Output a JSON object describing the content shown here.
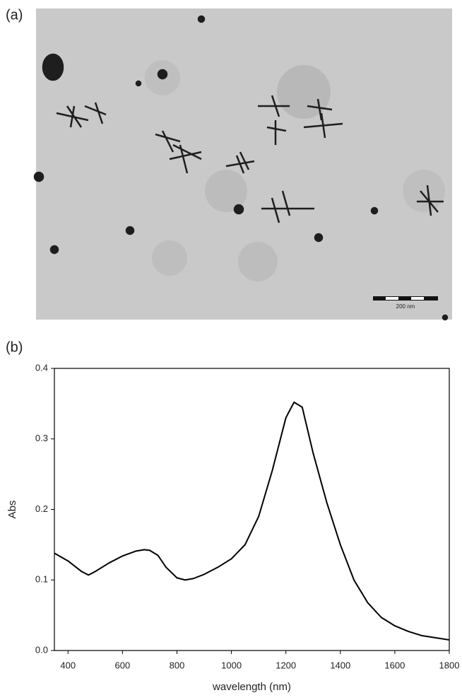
{
  "image_panel": {
    "label": "(a)",
    "scale_bar": "200 nm"
  },
  "chart_panel_label": "(b)",
  "chart_data": {
    "type": "line",
    "xlabel": "wavelength (nm)",
    "ylabel": "Abs",
    "x": [
      350,
      400,
      450,
      475,
      500,
      550,
      600,
      650,
      680,
      700,
      730,
      760,
      800,
      830,
      860,
      900,
      950,
      1000,
      1050,
      1100,
      1150,
      1200,
      1230,
      1260,
      1300,
      1350,
      1400,
      1450,
      1500,
      1550,
      1600,
      1650,
      1700,
      1750,
      1800
    ],
    "values": [
      0.138,
      0.127,
      0.112,
      0.107,
      0.112,
      0.124,
      0.134,
      0.141,
      0.143,
      0.142,
      0.135,
      0.118,
      0.103,
      0.1,
      0.102,
      0.108,
      0.118,
      0.13,
      0.15,
      0.19,
      0.255,
      0.33,
      0.352,
      0.345,
      0.28,
      0.21,
      0.15,
      0.1,
      0.068,
      0.047,
      0.035,
      0.027,
      0.021,
      0.018,
      0.015
    ],
    "color": "#000000",
    "xlim": [
      350,
      1800
    ],
    "ylim": [
      0,
      0.4
    ],
    "xticks": [
      400,
      600,
      800,
      1000,
      1200,
      1400,
      1600,
      1800
    ],
    "yticks": [
      {
        "value": 0,
        "label": "0.0"
      },
      0.1,
      0.2,
      0.3,
      0.4
    ]
  }
}
